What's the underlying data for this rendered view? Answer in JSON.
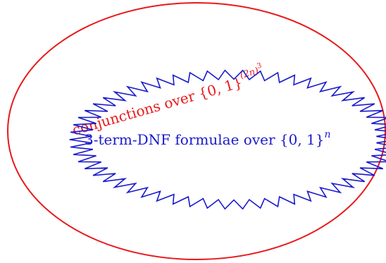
{
  "diagram": {
    "outer_set": {
      "prefix": "conjunctions over {0, 1}",
      "exponent_base": "(2n)",
      "exponent_power": "3",
      "color": "#e8191c"
    },
    "inner_set": {
      "prefix": "3-term-DNF formulae over {0, 1}",
      "exponent": "n",
      "color": "#1a1acc"
    }
  }
}
